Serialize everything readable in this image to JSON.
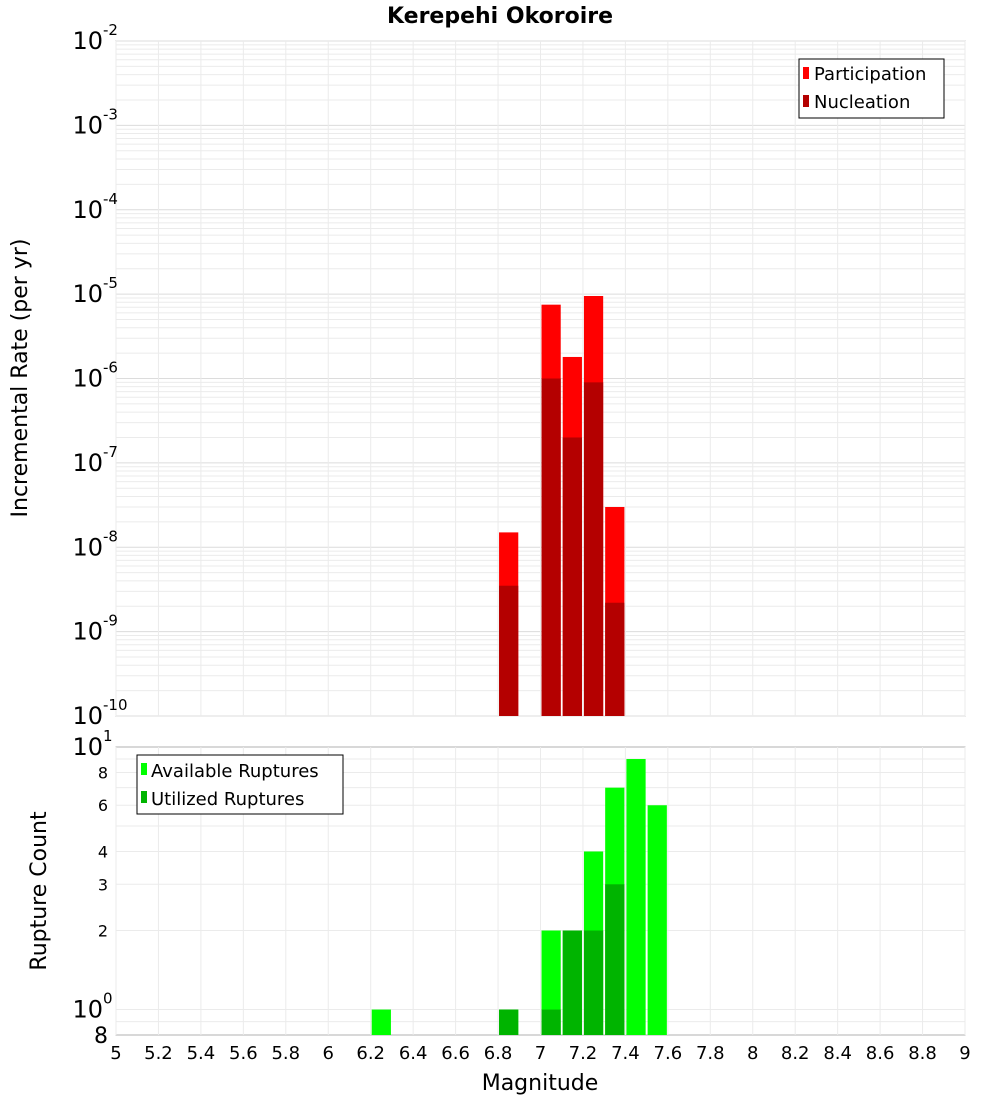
{
  "chart_data": [
    {
      "type": "bar",
      "title": "Kerepehi Okoroire",
      "ylabel": "Incremental Rate (per yr)",
      "xlabel": "",
      "yscale": "log",
      "ylim": [
        1e-10,
        0.01
      ],
      "xlim": [
        5,
        9
      ],
      "y_ticks": [
        {
          "base": "10",
          "exp": "-10",
          "value": 1e-10
        },
        {
          "base": "10",
          "exp": "-9",
          "value": 1e-09
        },
        {
          "base": "10",
          "exp": "-8",
          "value": 1e-08
        },
        {
          "base": "10",
          "exp": "-7",
          "value": 1e-07
        },
        {
          "base": "10",
          "exp": "-6",
          "value": 1e-06
        },
        {
          "base": "10",
          "exp": "-5",
          "value": 1e-05
        },
        {
          "base": "10",
          "exp": "-4",
          "value": 0.0001
        },
        {
          "base": "10",
          "exp": "-3",
          "value": 0.001
        },
        {
          "base": "10",
          "exp": "-2",
          "value": 0.01
        }
      ],
      "legend_position": "top-right",
      "series": [
        {
          "name": "Participation",
          "color": "#ff0000",
          "x": [
            6.85,
            7.05,
            7.15,
            7.25,
            7.35
          ],
          "values": [
            1.5e-08,
            7.5e-06,
            1.8e-06,
            9.5e-06,
            3e-08
          ]
        },
        {
          "name": "Nucleation",
          "color": "#b40000",
          "x": [
            6.85,
            7.05,
            7.15,
            7.25,
            7.35
          ],
          "values": [
            3.5e-09,
            1e-06,
            2e-07,
            9e-07,
            2.2e-09
          ]
        }
      ]
    },
    {
      "type": "bar",
      "title": "",
      "ylabel": "Rupture Count",
      "xlabel": "Magnitude",
      "yscale": "log",
      "ylim": [
        0.8,
        10
      ],
      "xlim": [
        5,
        9
      ],
      "y_ticks": [
        {
          "base": "10",
          "exp": "0",
          "value": 1
        },
        {
          "base": "10",
          "exp": "1",
          "value": 10
        }
      ],
      "y_minor_ticks": [
        {
          "label": "8",
          "value": 0.8
        },
        {
          "label": "2",
          "value": 2
        },
        {
          "label": "3",
          "value": 3
        },
        {
          "label": "4",
          "value": 4
        },
        {
          "label": "6",
          "value": 6
        },
        {
          "label": "8",
          "value": 8
        }
      ],
      "x_ticks": [
        "5",
        "5.2",
        "5.4",
        "5.6",
        "5.8",
        "6",
        "6.2",
        "6.4",
        "6.6",
        "6.8",
        "7",
        "7.2",
        "7.4",
        "7.6",
        "7.8",
        "8",
        "8.2",
        "8.4",
        "8.6",
        "8.8",
        "9"
      ],
      "legend_position": "top-left",
      "series": [
        {
          "name": "Available Ruptures",
          "color": "#00ff00",
          "x": [
            6.25,
            6.85,
            7.05,
            7.15,
            7.25,
            7.35,
            7.45,
            7.55
          ],
          "values": [
            1,
            1,
            2,
            2,
            4,
            7,
            9,
            6
          ]
        },
        {
          "name": "Utilized Ruptures",
          "color": "#00b400",
          "x": [
            6.85,
            7.05,
            7.15,
            7.25,
            7.35
          ],
          "values": [
            1,
            1,
            2,
            2,
            3
          ]
        }
      ]
    }
  ]
}
